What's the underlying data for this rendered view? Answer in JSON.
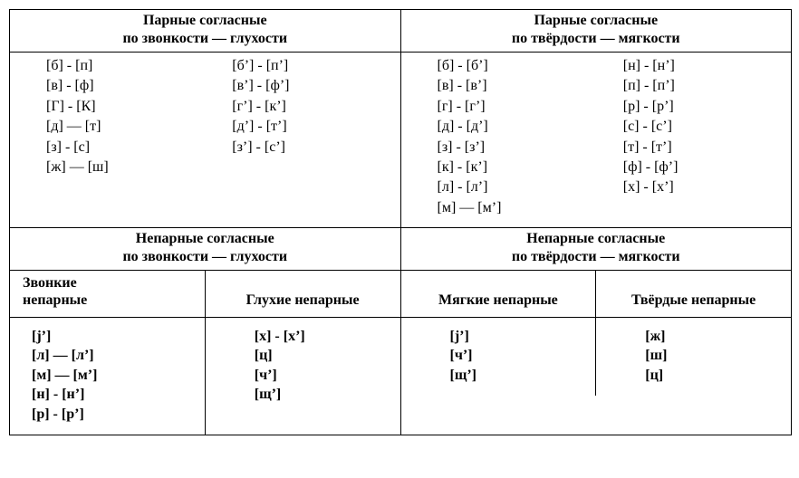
{
  "top": {
    "left": {
      "title_l1": "Парные согласные",
      "title_l2": "по звонкости — глухости",
      "col1": [
        "[б] - [п]",
        "[в] - [ф]",
        "[Г] - [К]",
        "[д] — [т]",
        "[з] - [с]",
        "[ж] — [ш]"
      ],
      "col2": [
        "[б’] - [п’]",
        "[в’] - [ф’]",
        "[г’] - [к’]",
        "[д’] - [т’]",
        "[з’] - [с’]"
      ]
    },
    "right": {
      "title_l1": "Парные согласные",
      "title_l2": "по твёрдости — мягкости",
      "col1": [
        "[б] - [б’]",
        "[в] - [в’]",
        "[г] - [г’]",
        "[д] - [д’]",
        "[з] - [з’]",
        "[к] - [к’]",
        "[л] - [л’]",
        "[м] — [м’]"
      ],
      "col2": [
        "[н] - [н’]",
        "[п] - [п’]",
        "[р] - [р’]",
        "[с] - [с’]",
        "[т] - [т’]",
        "[ф] - [ф’]",
        "[х] - [х’]"
      ]
    }
  },
  "bottom": {
    "left": {
      "title_l1": "Непарные согласные",
      "title_l2": "по звонкости — глухости",
      "q1": {
        "hdr_l1": "Звонкие",
        "hdr_l2": "непарные",
        "items": [
          "[j’]",
          "[л] — [л’]",
          "[м] — [м’]",
          "[н] - [н’]",
          "[р] - [р’]"
        ]
      },
      "q2": {
        "hdr": "Глухие непарные",
        "items": [
          "[х] - [х’]",
          "[ц]",
          "[ч’]",
          "[щ’]"
        ]
      }
    },
    "right": {
      "title_l1": "Непарные согласные",
      "title_l2": "по твёрдости — мягкости",
      "q3": {
        "hdr": "Мягкие непарные",
        "items": [
          "[j’]",
          "[ч’]",
          "[щ’]"
        ]
      },
      "q4": {
        "hdr": "Твёрдые непарные",
        "items": [
          "[ж]",
          "[ш]",
          "[ц]"
        ]
      }
    }
  }
}
